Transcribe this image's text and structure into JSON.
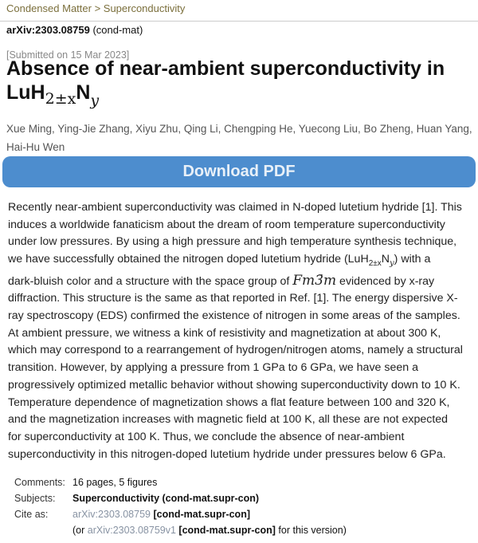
{
  "breadcrumb": "Condensed Matter > Superconductivity",
  "arxiv_id": "arXiv:2303.08759",
  "arxiv_category": "(cond-mat)",
  "submitted": "[Submitted on 15 Mar 2023]",
  "title": {
    "line1": "Absence of near-ambient superconductivity in",
    "formula_base": "LuH",
    "formula_sub": "2±x",
    "formula_n": "N",
    "formula_nsub": "y"
  },
  "authors": "Xue Ming, Ying-Jie Zhang, Xiyu Zhu, Qing Li, Chengping He, Yuecong Liu, Bo Zheng, Huan Yang, Hai-Hu Wen",
  "download_label": "Download PDF",
  "abstract": {
    "l1": "Recently near-ambient superconductivity was claimed in N-doped lutetium hydride [1]. This",
    "l2": "induces a worldwide fanaticism about the dream of room temperature superconductivity",
    "l3": "under low pressures. By using a high pressure and high temperature synthesis technique,",
    "l4a": "we have successfully obtained the nitrogen doped lutetium hydride (LuH",
    "l4sub": "2±x",
    "l4n": "N",
    "l4nsub": "y",
    "l4b": ") with a",
    "l5a": "dark-bluish color and a structure with the space group of ",
    "l5m": "Fm3̄m",
    "l5b": " evidenced by x-ray",
    "l6": "diffraction. This structure is the same as that reported in Ref. [1]. The energy dispersive X-",
    "l7": "ray spectroscopy (EDS) confirmed the existence of nitrogen in some areas of the samples.",
    "l8": "At ambient pressure, we witness a kink of resistivity and magnetization at about 300 K,",
    "l9": "which may correspond to a rearrangement of hydrogen/nitrogen atoms, namely a structural",
    "l10": "transition. However, by applying a pressure from 1 GPa to 6 GPa, we have seen a",
    "l11": "progressively optimized metallic behavior without showing superconductivity down to 10 K.",
    "l12": "Temperature dependence of magnetization shows a flat feature between 100 and 320 K,",
    "l13": "and the magnetization increases with magnetic field at 100 K, all these are not expected",
    "l14": "for superconductivity at 100 K. Thus, we conclude the absence of near-ambient",
    "l15": "superconductivity in this nitrogen-doped lutetium hydride under pressures below 6 GPa."
  },
  "meta": {
    "comments_label": "Comments:",
    "comments": "16 pages, 5 figures",
    "subjects_label": "Subjects:",
    "subjects": "Superconductivity (cond-mat.supr-con)",
    "cite_label": "Cite as:",
    "cite_link": "arXiv:2303.08759",
    "cite_cat": " [cond-mat.supr-con]",
    "ver_pre": "(or ",
    "ver_link": "arXiv:2303.08759v1",
    "ver_cat": " [cond-mat.supr-con]",
    "ver_post": " for this version)"
  }
}
